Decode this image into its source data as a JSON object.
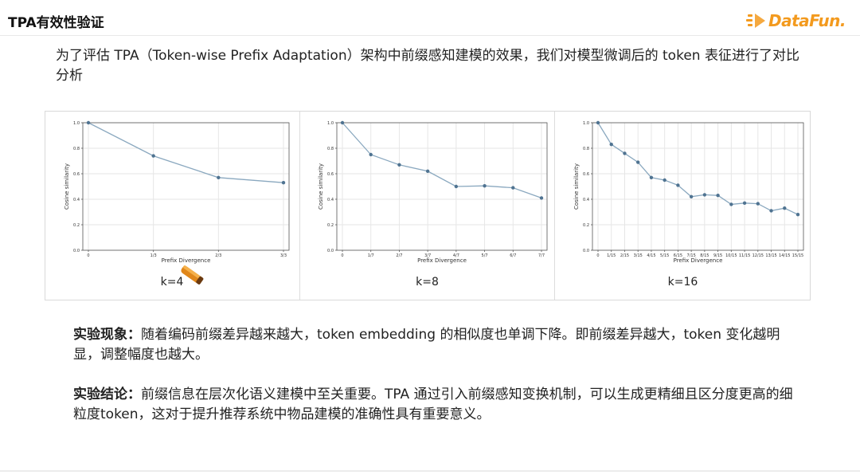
{
  "slide": {
    "title": "TPA有效性验证",
    "logo_text": "DataFun.",
    "intro": "为了评估 TPA（Token-wise Prefix Adaptation）架构中前缀感知建模的效果，我们对模型微调后的 token 表征进行了对比分析",
    "observation_lead": "实验现象：",
    "observation_text": "随着编码前缀差异越来越大，token embedding 的相似度也单调下降。即前缀差异越大，token 变化越明显，调整幅度也越大。",
    "conclusion_lead": "实验结论：",
    "conclusion_text": "前缀信息在层次化语义建模中至关重要。TPA 通过引入前缀感知变换机制，可以生成更精细且区分度更高的细粒度token，这对于提升推荐系统中物品建模的准确性具有重要意义。"
  },
  "colors": {
    "line": "#8aa8bf",
    "marker": "#4f7391",
    "logo": "#f39a1e"
  },
  "chart_data": [
    {
      "type": "line",
      "caption": "k=4",
      "xlabel": "Prefix Divergence",
      "ylabel": "Cosine similarity",
      "ylim": [
        0.0,
        1.0
      ],
      "yticks": [
        "0.0",
        "0.2",
        "0.4",
        "0.6",
        "0.8",
        "1.0"
      ],
      "x": [
        "0",
        "1/3",
        "2/3",
        "3/3"
      ],
      "values": [
        1.0,
        0.74,
        0.57,
        0.53
      ],
      "grid": true
    },
    {
      "type": "line",
      "caption": "k=8",
      "xlabel": "Prefix Divergence",
      "ylabel": "Cosine similarity",
      "ylim": [
        0.0,
        1.0
      ],
      "yticks": [
        "0.0",
        "0.2",
        "0.4",
        "0.6",
        "0.8",
        "1.0"
      ],
      "x": [
        "0",
        "1/7",
        "2/7",
        "3/7",
        "4/7",
        "5/7",
        "6/7",
        "7/7"
      ],
      "values": [
        1.0,
        0.75,
        0.67,
        0.62,
        0.5,
        0.505,
        0.49,
        0.41
      ],
      "grid": true
    },
    {
      "type": "line",
      "caption": "k=16",
      "xlabel": "Prefix Divergence",
      "ylabel": "Cosine similarity",
      "ylim": [
        0.0,
        1.0
      ],
      "yticks": [
        "0.0",
        "0.2",
        "0.4",
        "0.6",
        "0.8",
        "1.0"
      ],
      "x": [
        "0",
        "1/15",
        "2/15",
        "3/15",
        "4/15",
        "5/15",
        "6/15",
        "7/15",
        "8/15",
        "9/15",
        "10/15",
        "11/15",
        "12/15",
        "13/15",
        "14/15",
        "15/15"
      ],
      "values": [
        1.0,
        0.83,
        0.76,
        0.69,
        0.57,
        0.55,
        0.51,
        0.42,
        0.435,
        0.43,
        0.36,
        0.37,
        0.365,
        0.31,
        0.33,
        0.28
      ],
      "grid": true
    }
  ]
}
